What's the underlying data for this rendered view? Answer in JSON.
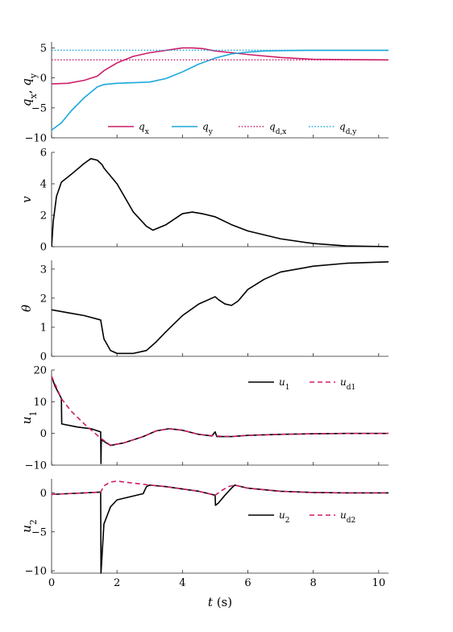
{
  "chart_data": {
    "type": "line",
    "xlabel": "t (s)",
    "xlim": [
      0,
      10.3
    ],
    "xticks": [
      0,
      2,
      4,
      6,
      8,
      10
    ],
    "colors": {
      "magenta": "#cc1f6a",
      "cyan": "#1aa7dc",
      "black": "#000000"
    },
    "panels": [
      {
        "id": "q",
        "ylabel": "q_x, q_y",
        "ylim": [
          -10,
          6
        ],
        "yticks": [
          -10,
          -5,
          0,
          5
        ],
        "legend": {
          "placement": "bottom-center",
          "columns": 4
        },
        "series": [
          {
            "name": "q_x",
            "color": "#cc1f6a",
            "dash": "none",
            "x": [
              0,
              0.5,
              1.0,
              1.4,
              1.6,
              2.0,
              2.5,
              3.0,
              3.5,
              4.0,
              4.3,
              4.6,
              5.0,
              5.5,
              6.0,
              7.0,
              8.0,
              9.0,
              10.3
            ],
            "y": [
              -1.0,
              -0.9,
              -0.4,
              0.3,
              1.2,
              2.5,
              3.6,
              4.2,
              4.6,
              5.0,
              5.0,
              4.9,
              4.5,
              4.2,
              3.9,
              3.4,
              3.1,
              3.05,
              3.0
            ]
          },
          {
            "name": "q_y",
            "color": "#1aa7dc",
            "dash": "none",
            "x": [
              0,
              0.3,
              0.6,
              1.0,
              1.4,
              1.6,
              2.0,
              2.5,
              3.0,
              3.5,
              4.0,
              4.5,
              5.0,
              5.5,
              6.0,
              6.5,
              7.0,
              8.0,
              9.0,
              10.3
            ],
            "y": [
              -8.7,
              -7.5,
              -5.5,
              -3.3,
              -1.5,
              -1.1,
              -0.9,
              -0.8,
              -0.7,
              -0.1,
              1.0,
              2.3,
              3.3,
              4.0,
              4.3,
              4.5,
              4.55,
              4.6,
              4.6,
              4.6
            ]
          },
          {
            "name": "q_d,x",
            "color": "#cc1f6a",
            "dash": "dotted",
            "x": [
              0,
              10.3
            ],
            "y": [
              3.0,
              3.0
            ]
          },
          {
            "name": "q_d,y",
            "color": "#1aa7dc",
            "dash": "dotted",
            "x": [
              0,
              10.3
            ],
            "y": [
              4.6,
              4.6
            ]
          }
        ]
      },
      {
        "id": "v",
        "ylabel": "v",
        "ylim": [
          0,
          6
        ],
        "yticks": [
          0,
          2,
          4,
          6
        ],
        "series": [
          {
            "name": "",
            "color": "#000000",
            "dash": "none",
            "x": [
              0,
              0.05,
              0.15,
              0.3,
              0.6,
              1.0,
              1.2,
              1.4,
              1.55,
              1.6,
              2.0,
              2.5,
              2.9,
              3.1,
              3.5,
              4.0,
              4.3,
              4.6,
              5.0,
              5.1,
              5.5,
              6.0,
              7.0,
              8.0,
              9.0,
              10.3
            ],
            "y": [
              0,
              1.6,
              3.2,
              4.1,
              4.6,
              5.3,
              5.6,
              5.5,
              5.2,
              5.0,
              4.0,
              2.2,
              1.3,
              1.05,
              1.4,
              2.1,
              2.2,
              2.1,
              1.9,
              1.8,
              1.4,
              1.0,
              0.5,
              0.2,
              0.05,
              0
            ]
          }
        ]
      },
      {
        "id": "theta",
        "ylabel": "θ",
        "ylim": [
          0,
          3.3
        ],
        "yticks": [
          0,
          1,
          2,
          3
        ],
        "series": [
          {
            "name": "",
            "color": "#000000",
            "dash": "none",
            "x": [
              0,
              0.5,
              1.0,
              1.5,
              1.6,
              1.8,
              2.0,
              2.5,
              2.9,
              3.2,
              3.5,
              4.0,
              4.5,
              5.0,
              5.1,
              5.3,
              5.5,
              5.7,
              6.0,
              6.5,
              7.0,
              8.0,
              9.0,
              10.3
            ],
            "y": [
              1.6,
              1.5,
              1.4,
              1.25,
              0.6,
              0.2,
              0.1,
              0.1,
              0.2,
              0.5,
              0.85,
              1.4,
              1.8,
              2.05,
              1.95,
              1.8,
              1.75,
              1.9,
              2.3,
              2.65,
              2.9,
              3.1,
              3.2,
              3.25
            ]
          }
        ]
      },
      {
        "id": "u1",
        "ylabel": "u_1",
        "ylim": [
          -10,
          20
        ],
        "yticks": [
          -10,
          0,
          10,
          20
        ],
        "legend": {
          "placement": "top-right",
          "columns": 2
        },
        "series": [
          {
            "name": "u_1",
            "color": "#000000",
            "dash": "none",
            "x": [
              0,
              0.1,
              0.2,
              0.3,
              0.31,
              0.8,
              1.2,
              1.5,
              1.51,
              1.52,
              1.6,
              1.8,
              2.2,
              2.8,
              3.2,
              3.6,
              4.0,
              4.5,
              4.9,
              5.0,
              5.05,
              5.5,
              6.0,
              7.0,
              8.0,
              9.0,
              10.3
            ],
            "y": [
              18.0,
              15.0,
              13.0,
              11.0,
              3.0,
              2.0,
              1.5,
              0.5,
              -9.5,
              -2.0,
              -2.5,
              -3.8,
              -3.0,
              -1.0,
              0.8,
              1.5,
              1.0,
              -0.3,
              -0.8,
              0.5,
              -1.0,
              -1.0,
              -0.6,
              -0.3,
              -0.1,
              0,
              0
            ]
          },
          {
            "name": "u_d1",
            "color": "#cc1f6a",
            "dash": "dashed",
            "x": [
              0,
              0.3,
              0.6,
              1.0,
              1.5,
              1.8,
              2.2,
              2.8,
              3.2,
              3.6,
              4.0,
              4.5,
              5.0,
              5.5,
              6.0,
              7.0,
              8.0,
              9.0,
              10.3
            ],
            "y": [
              18.0,
              11.0,
              7.0,
              3.0,
              -1.5,
              -3.7,
              -3.0,
              -1.0,
              0.8,
              1.5,
              1.0,
              -0.3,
              -0.8,
              -1.0,
              -0.6,
              -0.3,
              -0.1,
              0,
              0
            ]
          }
        ]
      },
      {
        "id": "u2",
        "ylabel": "u_2",
        "ylim": [
          -10.3,
          1.8
        ],
        "yticks": [
          -10,
          -5,
          0
        ],
        "legend": {
          "placement": "center-right",
          "columns": 2
        },
        "series": [
          {
            "name": "u_2",
            "color": "#000000",
            "dash": "none",
            "x": [
              0,
              0.5,
              1.0,
              1.5,
              1.51,
              1.6,
              1.8,
              2.0,
              2.4,
              2.8,
              2.9,
              3.0,
              3.5,
              4.0,
              4.5,
              5.0,
              5.01,
              5.1,
              5.3,
              5.5,
              5.6,
              6.0,
              7.0,
              8.0,
              9.0,
              10.3
            ],
            "y": [
              -0.2,
              -0.1,
              0,
              0.1,
              -10.3,
              -4.0,
              -1.8,
              -0.9,
              -0.5,
              -0.1,
              0.8,
              1.0,
              0.8,
              0.5,
              0.2,
              -0.3,
              -1.6,
              -1.3,
              -0.3,
              0.6,
              1.0,
              0.6,
              0.2,
              0.05,
              0,
              0
            ]
          },
          {
            "name": "u_d2",
            "color": "#cc1f6a",
            "dash": "dashed",
            "x": [
              0,
              0.5,
              1.0,
              1.5,
              1.6,
              1.8,
              2.0,
              2.4,
              2.8,
              3.0,
              3.5,
              4.0,
              4.5,
              5.0,
              5.2,
              5.4,
              5.6,
              6.0,
              7.0,
              8.0,
              9.0,
              10.3
            ],
            "y": [
              -0.2,
              -0.1,
              0,
              0.1,
              0.9,
              1.4,
              1.5,
              1.3,
              1.1,
              1.0,
              0.8,
              0.5,
              0.2,
              -0.3,
              0.3,
              0.8,
              1.0,
              0.6,
              0.2,
              0.05,
              0,
              0
            ]
          }
        ]
      }
    ]
  }
}
